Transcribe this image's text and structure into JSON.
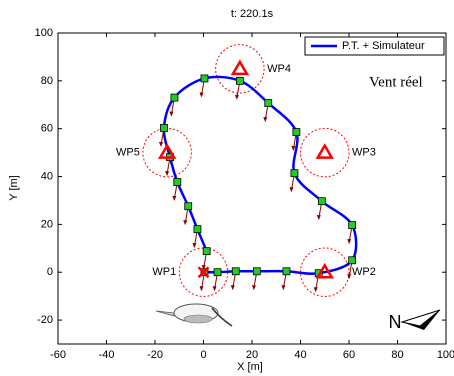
{
  "chart_data": {
    "type": "line",
    "title": "t: 220.1s",
    "xlabel": "X [m]",
    "ylabel": "Y [m]",
    "xlim": [
      -60,
      100
    ],
    "ylim": [
      -30,
      100
    ],
    "xticks": [
      -60,
      -40,
      -20,
      0,
      20,
      40,
      60,
      80,
      100
    ],
    "yticks": [
      -20,
      0,
      20,
      40,
      60,
      80,
      100
    ],
    "grid": false,
    "legend": "northeast",
    "marker_color": "#22cc22",
    "series": [
      {
        "name": "P.T. + Simulateur",
        "color": "#0000ff",
        "x": [
          0.4,
          5.8,
          13.3,
          22,
          34.2,
          47.5,
          61.3,
          61.3,
          48.8,
          37.5,
          38.3,
          26.7,
          15,
          0.4,
          -12,
          -16.3,
          -13.8,
          -10.8,
          -6.3,
          -2.5,
          1.3
        ],
        "y": [
          0,
          0,
          0.4,
          0.4,
          0.4,
          -0.4,
          5,
          19.7,
          29.7,
          41.4,
          58.6,
          70.7,
          80,
          81,
          73,
          60.3,
          48.1,
          37.7,
          27.6,
          18,
          8.8
        ]
      }
    ],
    "waypoint_radius": 10,
    "waypoint_color": "#ff0000",
    "waypoints": [
      {
        "label": "WP1",
        "x": 0,
        "y": 0,
        "symbol": "x"
      },
      {
        "label": "WP2",
        "x": 50,
        "y": 0,
        "symbol": "triangle"
      },
      {
        "label": "WP3",
        "x": 50,
        "y": 50,
        "symbol": "triangle"
      },
      {
        "label": "WP4",
        "x": 15,
        "y": 85,
        "symbol": "triangle"
      },
      {
        "label": "WP5",
        "x": -15,
        "y": 50,
        "symbol": "triangle"
      }
    ],
    "wind_label": "Vent réel",
    "north_label": "N"
  }
}
